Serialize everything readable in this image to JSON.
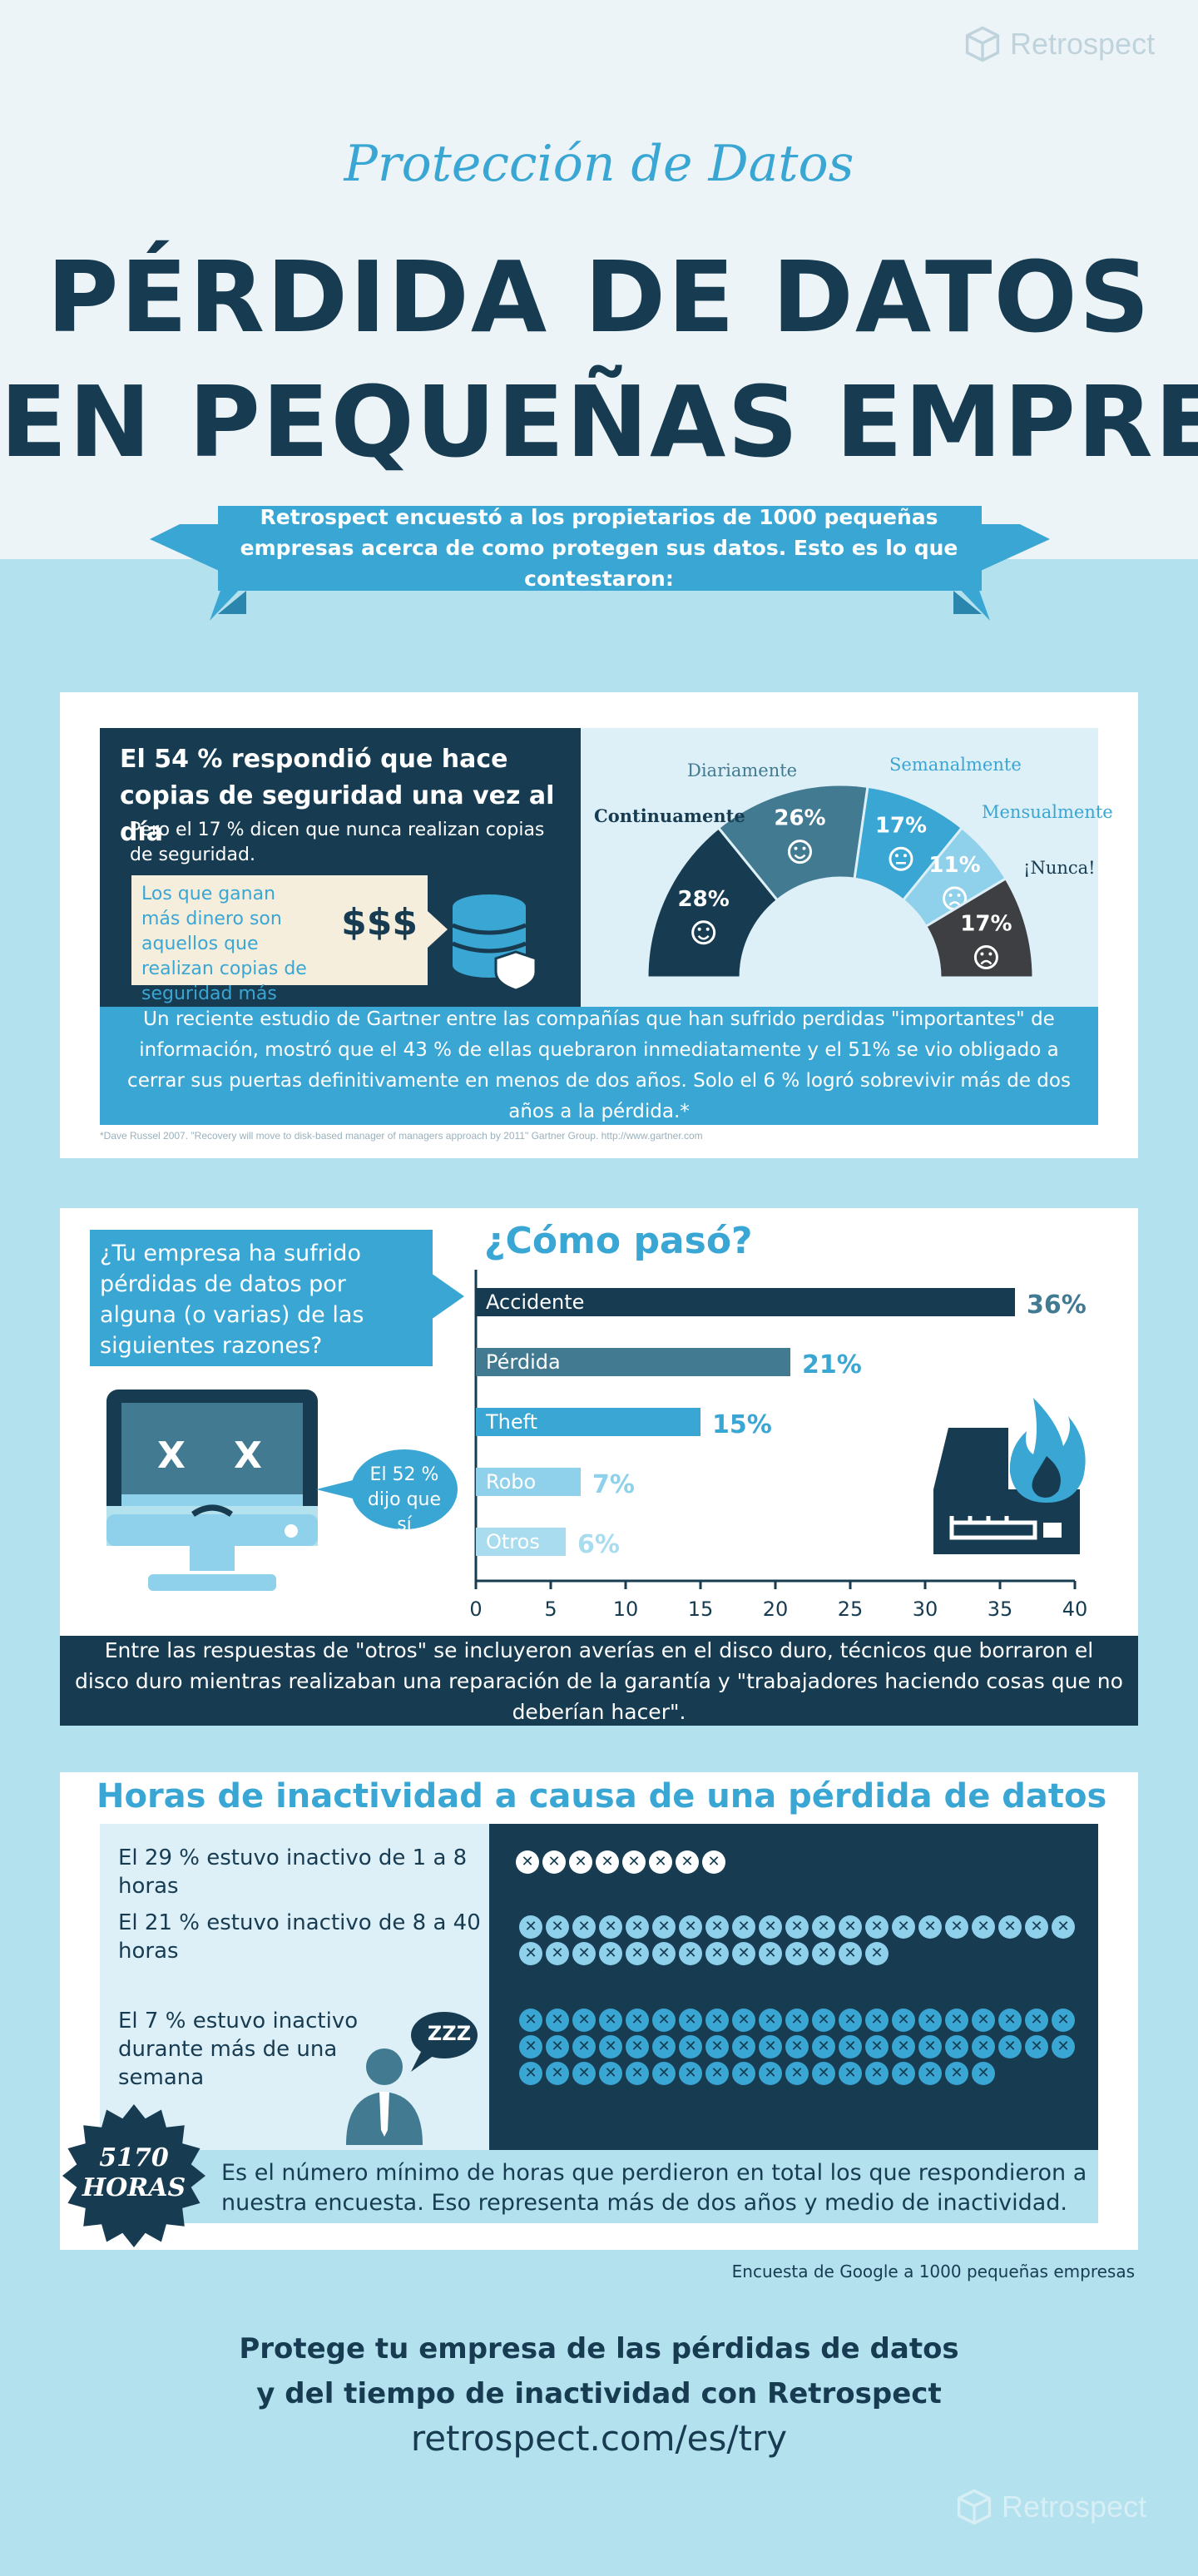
{
  "brand": {
    "logo_text": "Retrospect"
  },
  "header": {
    "kicker": "Protección de Datos",
    "title_line1": "PÉRDIDA DE DATOS",
    "title_line2": "EN PEQUEÑAS EMPRE",
    "ribbon": "Retrospect encuestó a los propietarios de 1000 pequeñas empresas acerca de como protegen sus datos. Esto es lo que contestaron:"
  },
  "backup": {
    "headline": "El 54 % respondió que hace copias de seguridad una vez al día",
    "subnote": "Pero el 17 % dicen que nunca realizan copias de seguridad.",
    "money_note": "Los que ganan más dinero son aquellos que realizan copias de seguridad más frecuentemente.",
    "money_symbol": "$$$",
    "gartner": "Un reciente estudio de Gartner entre las compañías que han sufrido perdidas \"importantes\" de información, mostró que el 43 % de ellas quebraron inmediatamente y el 51% se vio obligado a cerrar sus puertas definitivamente en menos de dos años. Solo el 6 % logró sobrevivir más de dos años a la pérdida.*",
    "footnote": "*Dave Russel 2007. \"Recovery will move to disk-based manager of managers approach by 2011\" Gartner Group. http://www.gartner.com"
  },
  "question": {
    "text": "¿Tu empresa ha sufrido pérdidas de datos por alguna (o varias) de las siguientes razones?",
    "yes_bubble": "El 52 % dijo que sí",
    "others_note": "Entre las respuestas de \"otros\" se incluyeron averías en el disco duro, técnicos que borraron el disco duro mientras realizaban una reparación de la garantía y \"trabajadores haciendo cosas que no deberían hacer\"."
  },
  "downtime": {
    "title": "Horas de inactividad a causa de una pérdida de datos",
    "row1": "El 29 % estuvo inactivo de 1 a 8 horas",
    "row2": "El 21 % estuvo inactivo de 8 a 40 horas",
    "row3": "El 7 % estuvo inactivo durante más de una semana",
    "zzz": "ZZZ",
    "hours_badge_line1": "5170",
    "hours_badge_line2": "HORAS",
    "hours_text": "Es el número mínimo de horas que perdieron en total los que respondieron a nuestra encuesta. Eso representa más de dos años y medio de inactividad.",
    "source": "Encuesta de Google a 1000 pequeñas empresas",
    "counts": [
      8,
      35,
      60
    ],
    "xmark": "✕"
  },
  "cta": {
    "line1": "Protege tu empresa de las pérdidas de datos",
    "line2": "y del tiempo de inactividad con Retrospect",
    "url": "retrospect.com/es/try"
  },
  "colors": {
    "navy": "#173c52",
    "blue": "#3aa6d3",
    "mid": "#417a91",
    "light": "#8fd0ea",
    "dark_gray": "#3d3f42"
  },
  "chart_data": [
    {
      "type": "pie",
      "title": "",
      "slices": [
        {
          "label": "Continuamente",
          "value": 28,
          "text": "28%",
          "color": "#173c52"
        },
        {
          "label": "Diariamente",
          "value": 26,
          "text": "26%",
          "color": "#417a91"
        },
        {
          "label": "Semanalmente",
          "value": 17,
          "text": "17%",
          "color": "#3aa6d3"
        },
        {
          "label": "Mensualmente",
          "value": 11,
          "text": "11%",
          "color": "#8fd0ea"
        },
        {
          "label": "¡Nunca!",
          "value": 17,
          "text": "17%",
          "color": "#3d3f42"
        }
      ]
    },
    {
      "type": "bar",
      "title": "¿Cómo pasó?",
      "orientation": "horizontal",
      "categories": [
        "Accidente",
        "Pérdida",
        "Theft",
        "Robo",
        "Otros"
      ],
      "values": [
        36,
        21,
        15,
        7,
        6
      ],
      "value_labels": [
        "36%",
        "21%",
        "15%",
        "7%",
        "6%"
      ],
      "xticks": [
        "0",
        "5",
        "10",
        "15",
        "20",
        "25",
        "30",
        "35",
        "40"
      ],
      "xlim": [
        0,
        40
      ],
      "colors": [
        "#173c52",
        "#417a91",
        "#3aa6d3",
        "#8fd0ea",
        "#a9dcef"
      ],
      "label_colors": [
        "#417a91",
        "#3aa6d3",
        "#3aa6d3",
        "#8fd0ea",
        "#a9dcef"
      ]
    }
  ]
}
